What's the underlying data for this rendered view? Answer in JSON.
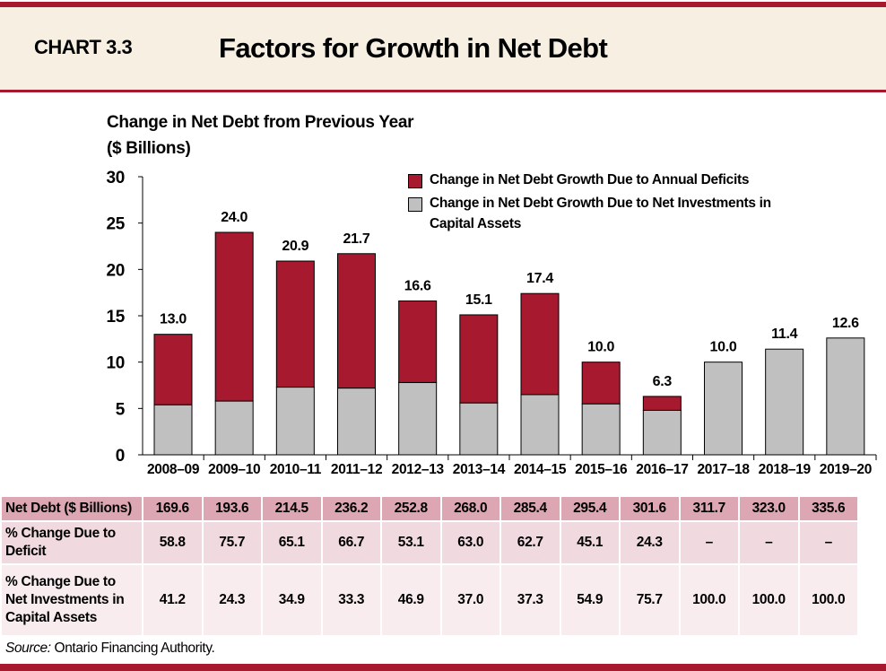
{
  "header": {
    "chart_number": "CHART 3.3",
    "title": "Factors for Growth in Net Debt"
  },
  "colors": {
    "deficit": "#a6192e",
    "capital": "#c0c0c0",
    "accent": "#a6192e",
    "header_bg": "#f7f0e2"
  },
  "chart_data": {
    "type": "bar",
    "stacked": true,
    "title": "Factors for Growth in Net Debt",
    "ylabel_line1": "Change in Net Debt from Previous Year",
    "ylabel_line2": "($ Billions)",
    "ylim": [
      0,
      30
    ],
    "yticks": [
      "0",
      "5",
      "10",
      "15",
      "20",
      "25",
      "30"
    ],
    "grid": false,
    "legend_position": "top-right",
    "categories": [
      "2008–09",
      "2009–10",
      "2010–11",
      "2011–12",
      "2012–13",
      "2013–14",
      "2014–15",
      "2015–16",
      "2016–17",
      "2017–18",
      "2018–19",
      "2019–20"
    ],
    "totals": [
      13.0,
      24.0,
      20.9,
      21.7,
      16.6,
      15.1,
      17.4,
      10.0,
      6.3,
      10.0,
      11.4,
      12.6
    ],
    "total_labels": [
      "13.0",
      "24.0",
      "20.9",
      "21.7",
      "16.6",
      "15.1",
      "17.4",
      "10.0",
      "6.3",
      "10.0",
      "11.4",
      "12.6"
    ],
    "series": [
      {
        "name": "Change in Net Debt Growth Due to Net Investments in Capital Assets",
        "values": [
          5.4,
          5.8,
          7.3,
          7.2,
          7.8,
          5.6,
          6.5,
          5.5,
          4.8,
          10.0,
          11.4,
          12.6
        ]
      },
      {
        "name": "Change in Net Debt Growth Due to Annual Deficits",
        "values": [
          7.6,
          18.2,
          13.6,
          14.5,
          8.8,
          9.5,
          10.9,
          4.5,
          1.5,
          0,
          0,
          0
        ]
      }
    ]
  },
  "legend": {
    "deficit": "Change in Net Debt Growth Due to Annual Deficits",
    "capital_line1": "Change in Net Debt Growth Due to Net Investments in",
    "capital_line2": "Capital Assets"
  },
  "table": {
    "rows": [
      {
        "label": "Net Debt ($ Billions)",
        "values": [
          "169.6",
          "193.6",
          "214.5",
          "236.2",
          "252.8",
          "268.0",
          "285.4",
          "295.4",
          "301.6",
          "311.7",
          "323.0",
          "335.6"
        ]
      },
      {
        "label_line1": "% Change Due to",
        "label_line2": "Deficit",
        "values": [
          "58.8",
          "75.7",
          "65.1",
          "66.7",
          "53.1",
          "63.0",
          "62.7",
          "45.1",
          "24.3",
          "–",
          "–",
          "–"
        ]
      },
      {
        "label_line1": "% Change Due to",
        "label_line2": "Net Investments in",
        "label_line3": "Capital Assets",
        "values": [
          "41.2",
          "24.3",
          "34.9",
          "33.3",
          "46.9",
          "37.0",
          "37.3",
          "54.9",
          "75.7",
          "100.0",
          "100.0",
          "100.0"
        ]
      }
    ]
  },
  "source": {
    "label": "Source:",
    "text": " Ontario Financing Authority."
  }
}
